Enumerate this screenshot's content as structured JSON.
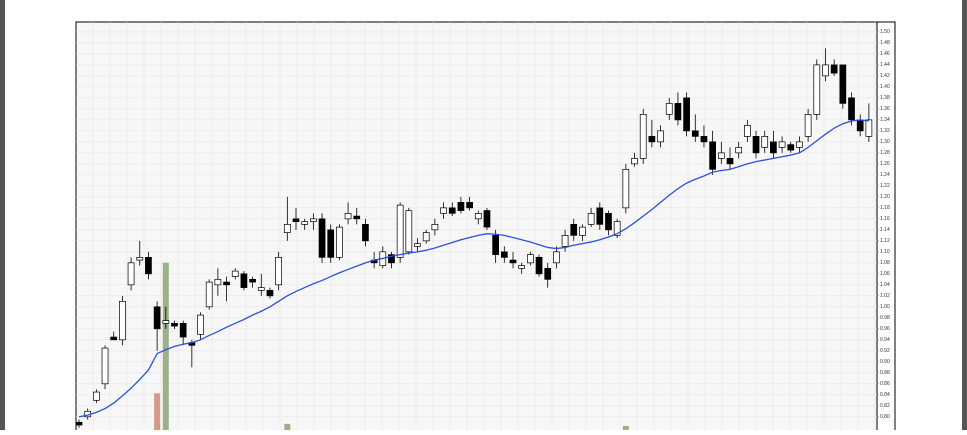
{
  "chart_data": {
    "type": "candlestick",
    "grid": true,
    "up_color": "#ffffff",
    "down_color": "#000000",
    "ylim": [
      0.776,
      1.518
    ],
    "yticks": [
      {
        "value": 0.8,
        "label": "0.80"
      },
      {
        "value": 0.82,
        "label": "0.82"
      },
      {
        "value": 0.84,
        "label": "0.84"
      },
      {
        "value": 0.86,
        "label": "0.86"
      },
      {
        "value": 0.88,
        "label": "0.88"
      },
      {
        "value": 0.9,
        "label": "0.90"
      },
      {
        "value": 0.92,
        "label": "0.92"
      },
      {
        "value": 0.94,
        "label": "0.94"
      },
      {
        "value": 0.96,
        "label": "0.96"
      },
      {
        "value": 0.98,
        "label": "0.98"
      },
      {
        "value": 1.0,
        "label": "1.00"
      },
      {
        "value": 1.02,
        "label": "1.02"
      },
      {
        "value": 1.04,
        "label": "1.04"
      },
      {
        "value": 1.06,
        "label": "1.06"
      },
      {
        "value": 1.08,
        "label": "1.08"
      },
      {
        "value": 1.1,
        "label": "1.10"
      },
      {
        "value": 1.12,
        "label": "1.12"
      },
      {
        "value": 1.14,
        "label": "1.14"
      },
      {
        "value": 1.16,
        "label": "1.16"
      },
      {
        "value": 1.18,
        "label": "1.18"
      },
      {
        "value": 1.2,
        "label": "1.20"
      },
      {
        "value": 1.22,
        "label": "1.22"
      },
      {
        "value": 1.24,
        "label": "1.24"
      },
      {
        "value": 1.26,
        "label": "1.26"
      },
      {
        "value": 1.28,
        "label": "1.28"
      },
      {
        "value": 1.3,
        "label": "1.30"
      },
      {
        "value": 1.32,
        "label": "1.32"
      },
      {
        "value": 1.34,
        "label": "1.34"
      },
      {
        "value": 1.36,
        "label": "1.36"
      },
      {
        "value": 1.38,
        "label": "1.38"
      },
      {
        "value": 1.4,
        "label": "1.40"
      },
      {
        "value": 1.42,
        "label": "1.42"
      },
      {
        "value": 1.44,
        "label": "1.44"
      },
      {
        "value": 1.46,
        "label": "1.46"
      },
      {
        "value": 1.48,
        "label": "1.48"
      },
      {
        "value": 1.5,
        "label": "1.50"
      }
    ],
    "open": [
      0.79,
      0.8,
      0.83,
      0.86,
      0.945,
      0.94,
      1.04,
      1.085,
      1.09,
      1.0,
      0.97,
      0.97,
      0.97,
      0.935,
      0.95,
      1.0,
      1.04,
      1.045,
      1.055,
      1.06,
      1.05,
      1.03,
      1.03,
      1.04,
      1.135,
      1.16,
      1.15,
      1.155,
      1.16,
      1.14,
      1.09,
      1.16,
      1.165,
      1.15,
      1.085,
      1.075,
      1.095,
      1.09,
      1.1,
      1.11,
      1.12,
      1.14,
      1.17,
      1.18,
      1.19,
      1.19,
      1.16,
      1.175,
      1.13,
      1.1,
      1.085,
      1.07,
      1.08,
      1.09,
      1.07,
      1.08,
      1.11,
      1.15,
      1.13,
      1.15,
      1.18,
      1.17,
      1.13,
      1.18,
      1.26,
      1.27,
      1.31,
      1.3,
      1.35,
      1.37,
      1.38,
      1.32,
      1.31,
      1.3,
      1.27,
      1.27,
      1.28,
      1.31,
      1.31,
      1.29,
      1.3,
      1.29,
      1.295,
      1.29,
      1.31,
      1.35,
      1.42,
      1.44,
      1.44,
      1.38,
      1.34,
      1.31
    ],
    "high": [
      0.795,
      0.815,
      0.85,
      0.93,
      0.955,
      1.02,
      1.09,
      1.12,
      1.1,
      1.01,
      1.0,
      0.975,
      0.975,
      0.94,
      0.99,
      1.05,
      1.07,
      1.055,
      1.07,
      1.065,
      1.055,
      1.06,
      1.035,
      1.1,
      1.2,
      1.18,
      1.16,
      1.17,
      1.17,
      1.15,
      1.15,
      1.19,
      1.18,
      1.16,
      1.1,
      1.11,
      1.1,
      1.19,
      1.18,
      1.125,
      1.14,
      1.16,
      1.19,
      1.19,
      1.2,
      1.2,
      1.175,
      1.18,
      1.14,
      1.11,
      1.1,
      1.08,
      1.1,
      1.095,
      1.08,
      1.11,
      1.14,
      1.16,
      1.15,
      1.18,
      1.19,
      1.175,
      1.16,
      1.26,
      1.28,
      1.36,
      1.34,
      1.33,
      1.38,
      1.39,
      1.39,
      1.35,
      1.33,
      1.32,
      1.3,
      1.29,
      1.3,
      1.34,
      1.32,
      1.32,
      1.32,
      1.31,
      1.3,
      1.31,
      1.36,
      1.45,
      1.47,
      1.45,
      1.44,
      1.39,
      1.35,
      1.37
    ],
    "low": [
      0.78,
      0.795,
      0.825,
      0.85,
      0.94,
      0.93,
      1.03,
      1.075,
      1.05,
      0.92,
      0.96,
      0.96,
      0.93,
      0.89,
      0.94,
      0.995,
      1.02,
      1.01,
      1.05,
      1.03,
      1.035,
      1.02,
      1.015,
      1.03,
      1.12,
      1.14,
      1.14,
      1.14,
      1.08,
      1.08,
      1.085,
      1.15,
      1.15,
      1.11,
      1.07,
      1.07,
      1.07,
      1.08,
      1.095,
      1.1,
      1.115,
      1.13,
      1.16,
      1.165,
      1.17,
      1.175,
      1.15,
      1.14,
      1.08,
      1.08,
      1.07,
      1.06,
      1.075,
      1.055,
      1.035,
      1.07,
      1.1,
      1.12,
      1.12,
      1.145,
      1.14,
      1.13,
      1.125,
      1.17,
      1.255,
      1.26,
      1.29,
      1.29,
      1.34,
      1.33,
      1.31,
      1.3,
      1.29,
      1.24,
      1.26,
      1.25,
      1.27,
      1.3,
      1.27,
      1.28,
      1.27,
      1.28,
      1.28,
      1.28,
      1.3,
      1.34,
      1.41,
      1.42,
      1.36,
      1.33,
      1.31,
      1.3
    ],
    "close": [
      0.785,
      0.81,
      0.845,
      0.925,
      0.94,
      1.01,
      1.08,
      1.09,
      1.06,
      0.96,
      0.975,
      0.965,
      0.945,
      0.93,
      0.985,
      1.045,
      1.05,
      1.04,
      1.065,
      1.035,
      1.045,
      1.035,
      1.02,
      1.09,
      1.15,
      1.155,
      1.155,
      1.16,
      1.09,
      1.09,
      1.145,
      1.17,
      1.16,
      1.12,
      1.08,
      1.1,
      1.08,
      1.185,
      1.175,
      1.115,
      1.135,
      1.15,
      1.18,
      1.17,
      1.175,
      1.18,
      1.17,
      1.145,
      1.095,
      1.09,
      1.08,
      1.075,
      1.095,
      1.06,
      1.05,
      1.1,
      1.13,
      1.13,
      1.145,
      1.17,
      1.15,
      1.14,
      1.155,
      1.25,
      1.27,
      1.35,
      1.3,
      1.32,
      1.37,
      1.34,
      1.32,
      1.31,
      1.3,
      1.25,
      1.28,
      1.26,
      1.29,
      1.33,
      1.28,
      1.31,
      1.28,
      1.3,
      1.285,
      1.3,
      1.35,
      1.44,
      1.44,
      1.425,
      1.37,
      1.34,
      1.32,
      1.34
    ],
    "ma": {
      "color": "#2b50e0",
      "values": [
        0.8,
        0.803,
        0.808,
        0.815,
        0.825,
        0.838,
        0.852,
        0.868,
        0.885,
        0.915,
        0.922,
        0.928,
        0.932,
        0.935,
        0.94,
        0.948,
        0.955,
        0.963,
        0.97,
        0.977,
        0.985,
        0.992,
        1.0,
        1.01,
        1.02,
        1.028,
        1.035,
        1.042,
        1.048,
        1.055,
        1.062,
        1.068,
        1.074,
        1.08,
        1.085,
        1.088,
        1.092,
        1.095,
        1.098,
        1.1,
        1.103,
        1.107,
        1.112,
        1.117,
        1.122,
        1.126,
        1.13,
        1.133,
        1.132,
        1.13,
        1.126,
        1.122,
        1.118,
        1.113,
        1.108,
        1.106,
        1.108,
        1.112,
        1.115,
        1.118,
        1.122,
        1.127,
        1.133,
        1.142,
        1.153,
        1.165,
        1.177,
        1.19,
        1.203,
        1.215,
        1.225,
        1.232,
        1.238,
        1.245,
        1.248,
        1.25,
        1.255,
        1.26,
        1.264,
        1.267,
        1.27,
        1.273,
        1.276,
        1.28,
        1.29,
        1.302,
        1.314,
        1.325,
        1.333,
        1.338,
        1.34,
        1.338
      ]
    },
    "volume": {
      "up_color": "#9cb08a",
      "down_color": "#d49a88",
      "vlim": [
        0,
        100
      ],
      "values": [
        null,
        null,
        null,
        null,
        null,
        null,
        null,
        null,
        null,
        9,
        41,
        null,
        null,
        null,
        null,
        null,
        null,
        null,
        null,
        null,
        null,
        null,
        null,
        null,
        1.5,
        null,
        null,
        null,
        null,
        null,
        null,
        null,
        null,
        null,
        null,
        null,
        null,
        null,
        null,
        null,
        null,
        null,
        null,
        null,
        null,
        null,
        null,
        null,
        null,
        null,
        null,
        null,
        null,
        null,
        null,
        null,
        null,
        null,
        null,
        null,
        null,
        null,
        null,
        1,
        null,
        null,
        null,
        null,
        null,
        null,
        null,
        null,
        null,
        null,
        null,
        null,
        null,
        null,
        null,
        null,
        null,
        null,
        null,
        null,
        null,
        null,
        null,
        null,
        null,
        null,
        null,
        null
      ]
    }
  }
}
